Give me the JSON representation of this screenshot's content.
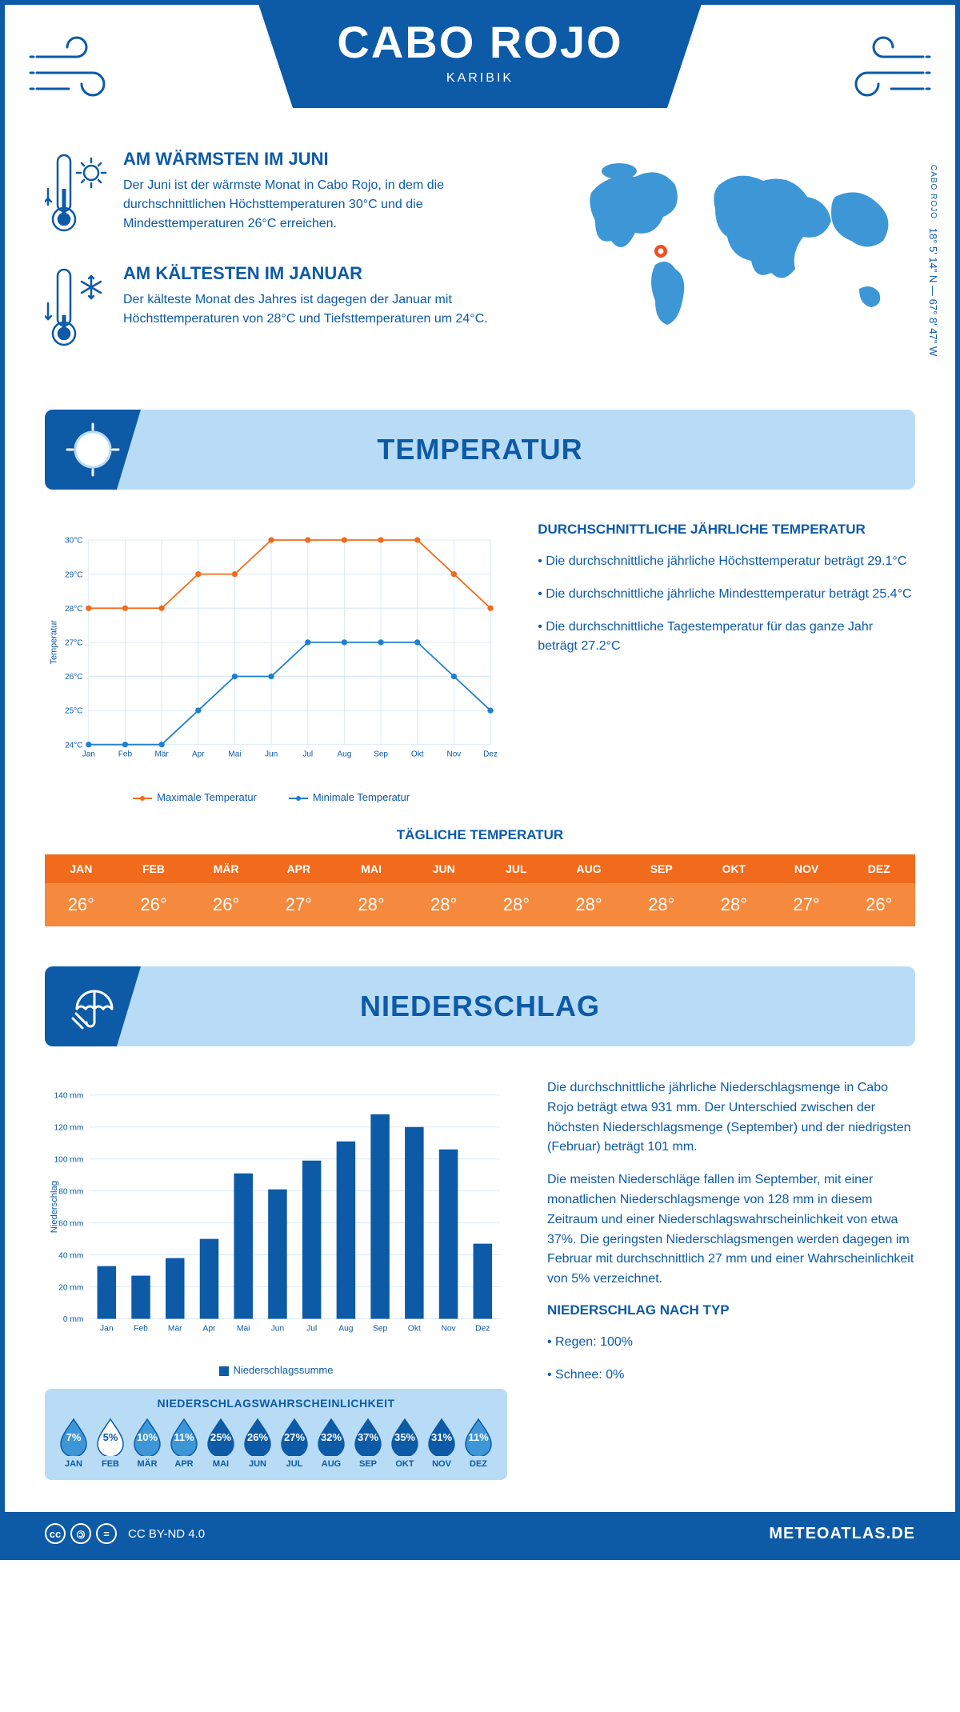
{
  "header": {
    "title": "CABO ROJO",
    "subtitle": "KARIBIK"
  },
  "coords": {
    "lat": "18° 5' 14\" N",
    "sep": "—",
    "lon": "67° 8' 47\" W",
    "label": "CABO ROJO"
  },
  "warmest": {
    "title": "AM WÄRMSTEN IM JUNI",
    "text": "Der Juni ist der wärmste Monat in Cabo Rojo, in dem die durchschnittlichen Höchsttemperaturen 30°C und die Mindesttemperaturen 26°C erreichen."
  },
  "coldest": {
    "title": "AM KÄLTESTEN IM JANUAR",
    "text": "Der kälteste Monat des Jahres ist dagegen der Januar mit Höchsttemperaturen von 28°C und Tiefsttemperaturen um 24°C."
  },
  "colors": {
    "brand": "#0d5aa7",
    "lightblue": "#b8dcf5",
    "orange": "#f26a1b",
    "orange_light": "#f58a3f",
    "chart_max": "#f26a1b",
    "chart_min": "#1f7fd1",
    "grid": "#d7e8f5",
    "map": "#3d97d6",
    "marker": "#f04e23"
  },
  "temp_section": {
    "title": "TEMPERATUR"
  },
  "temp_chart": {
    "type": "line",
    "months": [
      "Jan",
      "Feb",
      "Mär",
      "Apr",
      "Mai",
      "Jun",
      "Jul",
      "Aug",
      "Sep",
      "Okt",
      "Nov",
      "Dez"
    ],
    "max": [
      28,
      28,
      28,
      29,
      29,
      30,
      30,
      30,
      30,
      30,
      29,
      28
    ],
    "min": [
      24,
      24,
      24,
      25,
      26,
      26,
      27,
      27,
      27,
      27,
      26,
      25
    ],
    "ylim": [
      24,
      30
    ],
    "ytick_step": 1,
    "y_suffix": "°C",
    "y_title": "Temperatur",
    "legend_max": "Maximale Temperatur",
    "legend_min": "Minimale Temperatur",
    "line_width": 2,
    "marker_size": 4
  },
  "temp_text": {
    "title": "DURCHSCHNITTLICHE JÄHRLICHE TEMPERATUR",
    "b1": "• Die durchschnittliche jährliche Höchsttemperatur beträgt 29.1°C",
    "b2": "• Die durchschnittliche jährliche Mindesttemperatur beträgt 25.4°C",
    "b3": "• Die durchschnittliche Tagestemperatur für das ganze Jahr beträgt 27.2°C"
  },
  "daily_temp": {
    "title": "TÄGLICHE TEMPERATUR",
    "months": [
      "JAN",
      "FEB",
      "MÄR",
      "APR",
      "MAI",
      "JUN",
      "JUL",
      "AUG",
      "SEP",
      "OKT",
      "NOV",
      "DEZ"
    ],
    "values": [
      "26°",
      "26°",
      "26°",
      "27°",
      "28°",
      "28°",
      "28°",
      "28°",
      "28°",
      "28°",
      "27°",
      "26°"
    ]
  },
  "precip_section": {
    "title": "NIEDERSCHLAG"
  },
  "precip_chart": {
    "type": "bar",
    "months": [
      "Jan",
      "Feb",
      "Mär",
      "Apr",
      "Mai",
      "Jun",
      "Jul",
      "Aug",
      "Sep",
      "Okt",
      "Nov",
      "Dez"
    ],
    "values": [
      33,
      27,
      38,
      50,
      91,
      81,
      99,
      111,
      128,
      120,
      106,
      47
    ],
    "ylim": [
      0,
      140
    ],
    "ytick_step": 20,
    "y_suffix": " mm",
    "y_title": "Niederschlag",
    "legend": "Niederschlagssumme",
    "bar_color": "#0d5aa7",
    "bar_width": 0.55
  },
  "precip_text": {
    "p1": "Die durchschnittliche jährliche Niederschlagsmenge in Cabo Rojo beträgt etwa 931 mm. Der Unterschied zwischen der höchsten Niederschlagsmenge (September) und der niedrigsten (Februar) beträgt 101 mm.",
    "p2": "Die meisten Niederschläge fallen im September, mit einer monatlichen Niederschlagsmenge von 128 mm in diesem Zeitraum und einer Niederschlagswahrscheinlichkeit von etwa 37%. Die geringsten Niederschlagsmengen werden dagegen im Februar mit durchschnittlich 27 mm und einer Wahrscheinlichkeit von 5% verzeichnet.",
    "type_title": "NIEDERSCHLAG NACH TYP",
    "rain": "• Regen: 100%",
    "snow": "• Schnee: 0%"
  },
  "precip_prob": {
    "title": "NIEDERSCHLAGSWAHRSCHEINLICHKEIT",
    "months": [
      "JAN",
      "FEB",
      "MÄR",
      "APR",
      "MAI",
      "JUN",
      "JUL",
      "AUG",
      "SEP",
      "OKT",
      "NOV",
      "DEZ"
    ],
    "values": [
      7,
      5,
      10,
      11,
      25,
      26,
      27,
      32,
      37,
      35,
      31,
      11
    ],
    "min_color": "#ffffff",
    "min_text": "#0d5aa7",
    "fill_color": "#0d5aa7",
    "fill_text": "#ffffff",
    "outline_color": "#3d97d6"
  },
  "footer": {
    "license": "CC BY-ND 4.0",
    "site": "METEOATLAS.DE"
  }
}
